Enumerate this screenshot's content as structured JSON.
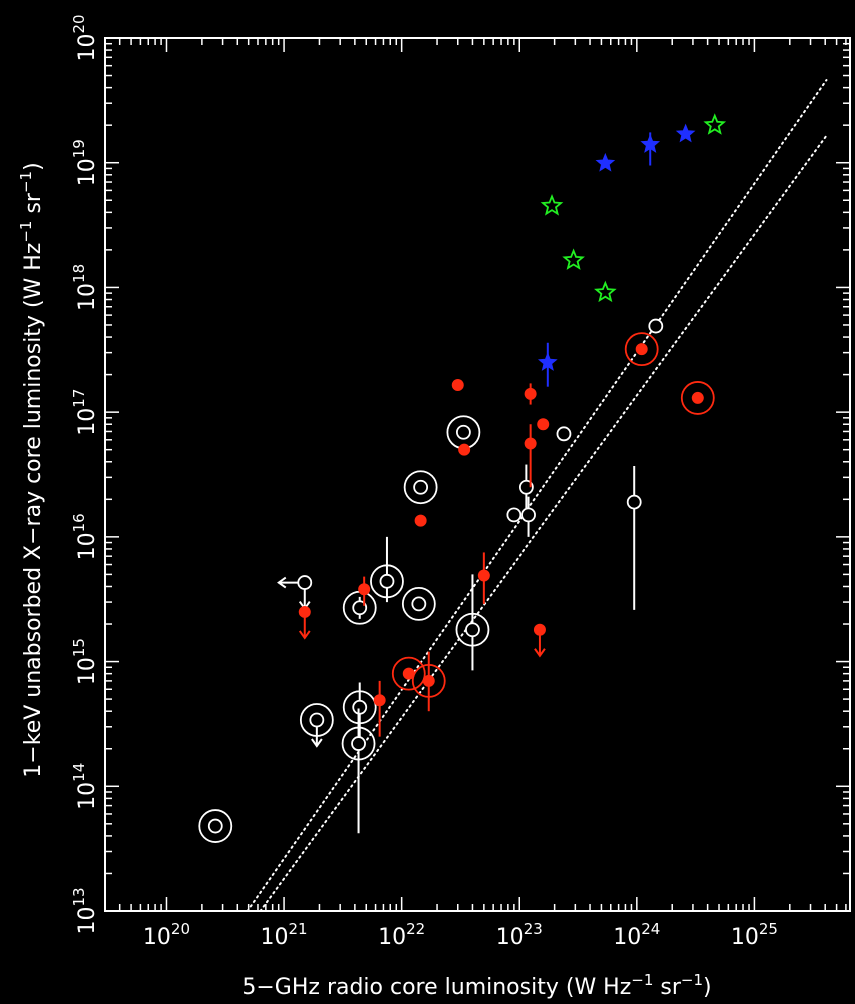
{
  "chart_data": {
    "type": "scatter",
    "title": "",
    "xlabel": {
      "pre": "5−GHz radio core luminosity (W Hz",
      "exp1": "−1",
      "mid": " sr",
      "exp2": "−1",
      "post": ")"
    },
    "ylabel": {
      "pre": "1−keV unabsorbed X−ray core luminosity (W Hz",
      "exp1": "−1",
      "mid": " sr",
      "exp2": "−1",
      "post": ")"
    },
    "x_scale": "log",
    "y_scale": "log",
    "xlim": [
      3e+19,
      6.5e+25
    ],
    "ylim": [
      10000000000000.0,
      1e+20
    ],
    "x_ticks": [
      {
        "value": 1e+20,
        "base": "10",
        "exp": "20"
      },
      {
        "value": 1e+21,
        "base": "10",
        "exp": "21"
      },
      {
        "value": 1e+22,
        "base": "10",
        "exp": "22"
      },
      {
        "value": 1e+23,
        "base": "10",
        "exp": "23"
      },
      {
        "value": 1e+24,
        "base": "10",
        "exp": "24"
      },
      {
        "value": 1e+25,
        "base": "10",
        "exp": "25"
      }
    ],
    "y_ticks": [
      {
        "value": 10000000000000.0,
        "base": "10",
        "exp": "13"
      },
      {
        "value": 100000000000000.0,
        "base": "10",
        "exp": "14"
      },
      {
        "value": 1000000000000000.0,
        "base": "10",
        "exp": "15"
      },
      {
        "value": 1e+16,
        "base": "10",
        "exp": "16"
      },
      {
        "value": 1e+17,
        "base": "10",
        "exp": "17"
      },
      {
        "value": 1e+18,
        "base": "10",
        "exp": "18"
      },
      {
        "value": 1e+19,
        "base": "10",
        "exp": "19"
      },
      {
        "value": 1e+20,
        "base": "10",
        "exp": "20"
      }
    ],
    "grid": false,
    "legend": "none",
    "colors": {
      "background": "#000000",
      "axes": "#ffffff",
      "red": "#ff2a10",
      "blue": "#1f2fff",
      "green": "#22ee22"
    },
    "lines": [
      {
        "style": "dotted",
        "color": "#ffffff",
        "x": [
          4.9e+20,
          4.1e+25
        ],
        "y": [
          10000000000000.0,
          4.6e+19
        ]
      },
      {
        "style": "dotted",
        "color": "#ffffff",
        "x": [
          6.3e+20,
          4.2e+25
        ],
        "y": [
          10000000000000.0,
          1.7e+19
        ]
      }
    ],
    "series": [
      {
        "marker": "open-circle",
        "color": "#ffffff",
        "points": [
          {
            "x": 2.6e+20,
            "y": 48000000000000.0,
            "ring": true
          },
          {
            "x": 1.9e+21,
            "y": 340000000000000.0,
            "ring": true,
            "upper_limit": true
          },
          {
            "x": 4.4e+21,
            "y": 430000000000000.0,
            "ring": true,
            "err_y": [
              200000000000000.0,
              680000000000000.0
            ]
          },
          {
            "x": 4.3e+21,
            "y": 220000000000000.0,
            "ring": true,
            "err_y": [
              42000000000000.0,
              420000000000000.0
            ]
          },
          {
            "x": 4.4e+21,
            "y": 2700000000000000.0,
            "ring": true,
            "err_y": [
              2200000000000000.0,
              3300000000000000.0
            ]
          },
          {
            "x": 7.5e+21,
            "y": 4400000000000000.0,
            "ring": true,
            "err_y": [
              3000000000000000.0,
              1e+16
            ]
          },
          {
            "x": 1.4e+22,
            "y": 2900000000000000.0,
            "ring": true
          },
          {
            "x": 1.45e+22,
            "y": 2.5e+16,
            "ring": true
          },
          {
            "x": 3.35e+22,
            "y": 6.9e+16,
            "ring": true
          },
          {
            "x": 4e+22,
            "y": 1800000000000000.0,
            "ring": true,
            "err_y": [
              850000000000000.0,
              5000000000000000.0
            ]
          },
          {
            "x": 1.5e+21,
            "y": 4300000000000000.0,
            "left_limit": true,
            "upper_limit": true
          },
          {
            "x": 9e+22,
            "y": 1.5e+16
          },
          {
            "x": 1.15e+23,
            "y": 2.5e+16,
            "err_y": [
              1.5e+16,
              3.8e+16
            ]
          },
          {
            "x": 1.2e+23,
            "y": 1.5e+16,
            "err_y": [
              1e+16,
              2.1e+16
            ]
          },
          {
            "x": 2.4e+23,
            "y": 6.7e+16
          },
          {
            "x": 9.5e+23,
            "y": 1.9e+16,
            "err_y": [
              2600000000000000.0,
              3.7e+16
            ]
          },
          {
            "x": 1.45e+24,
            "y": 4.9e+17
          }
        ]
      },
      {
        "marker": "filled-circle",
        "color": "#ff2a10",
        "points": [
          {
            "x": 1.5e+21,
            "y": 2500000000000000.0,
            "upper_limit": true
          },
          {
            "x": 4.8e+21,
            "y": 3800000000000000.0,
            "err_y": [
              2800000000000000.0,
              4800000000000000.0
            ]
          },
          {
            "x": 6.5e+21,
            "y": 490000000000000.0,
            "err_y": [
              250000000000000.0,
              700000000000000.0
            ]
          },
          {
            "x": 1.15e+22,
            "y": 800000000000000.0,
            "ring": true
          },
          {
            "x": 1.7e+22,
            "y": 700000000000000.0,
            "ring": true,
            "err_y": [
              400000000000000.0,
              1200000000000000.0
            ]
          },
          {
            "x": 1.45e+22,
            "y": 1.35e+16
          },
          {
            "x": 3e+22,
            "y": 1.65e+17
          },
          {
            "x": 3.4e+22,
            "y": 5e+16
          },
          {
            "x": 5e+22,
            "y": 4900000000000000.0,
            "err_y": [
              2900000000000000.0,
              7500000000000000.0
            ]
          },
          {
            "x": 1.25e+23,
            "y": 1.4e+17,
            "err_y": [
              1.15e+17,
              1.7e+17
            ]
          },
          {
            "x": 1.25e+23,
            "y": 5.6e+16,
            "err_y": [
              2.5e+16,
              8e+16
            ]
          },
          {
            "x": 1.6e+23,
            "y": 8e+16
          },
          {
            "x": 1.5e+23,
            "y": 1800000000000000.0,
            "upper_limit": true
          },
          {
            "x": 1.1e+24,
            "y": 3.2e+17,
            "ring": true
          },
          {
            "x": 3.3e+24,
            "y": 1.3e+17,
            "ring": true
          }
        ]
      },
      {
        "marker": "filled-star",
        "color": "#1f2fff",
        "points": [
          {
            "x": 1.75e+23,
            "y": 2.5e+17,
            "err_y": [
              1.6e+17,
              3.6e+17
            ]
          },
          {
            "x": 5.4e+23,
            "y": 9.9e+18
          },
          {
            "x": 1.3e+24,
            "y": 1.4e+19,
            "err_y": [
              9.5e+18,
              1.75e+19
            ]
          },
          {
            "x": 2.6e+24,
            "y": 1.7e+19
          }
        ]
      },
      {
        "marker": "open-star",
        "color": "#22ee22",
        "points": [
          {
            "x": 1.9e+23,
            "y": 4.5e+18
          },
          {
            "x": 2.9e+23,
            "y": 1.65e+18
          },
          {
            "x": 5.4e+23,
            "y": 9.1e+17
          },
          {
            "x": 4.6e+24,
            "y": 2e+19
          }
        ]
      }
    ]
  }
}
